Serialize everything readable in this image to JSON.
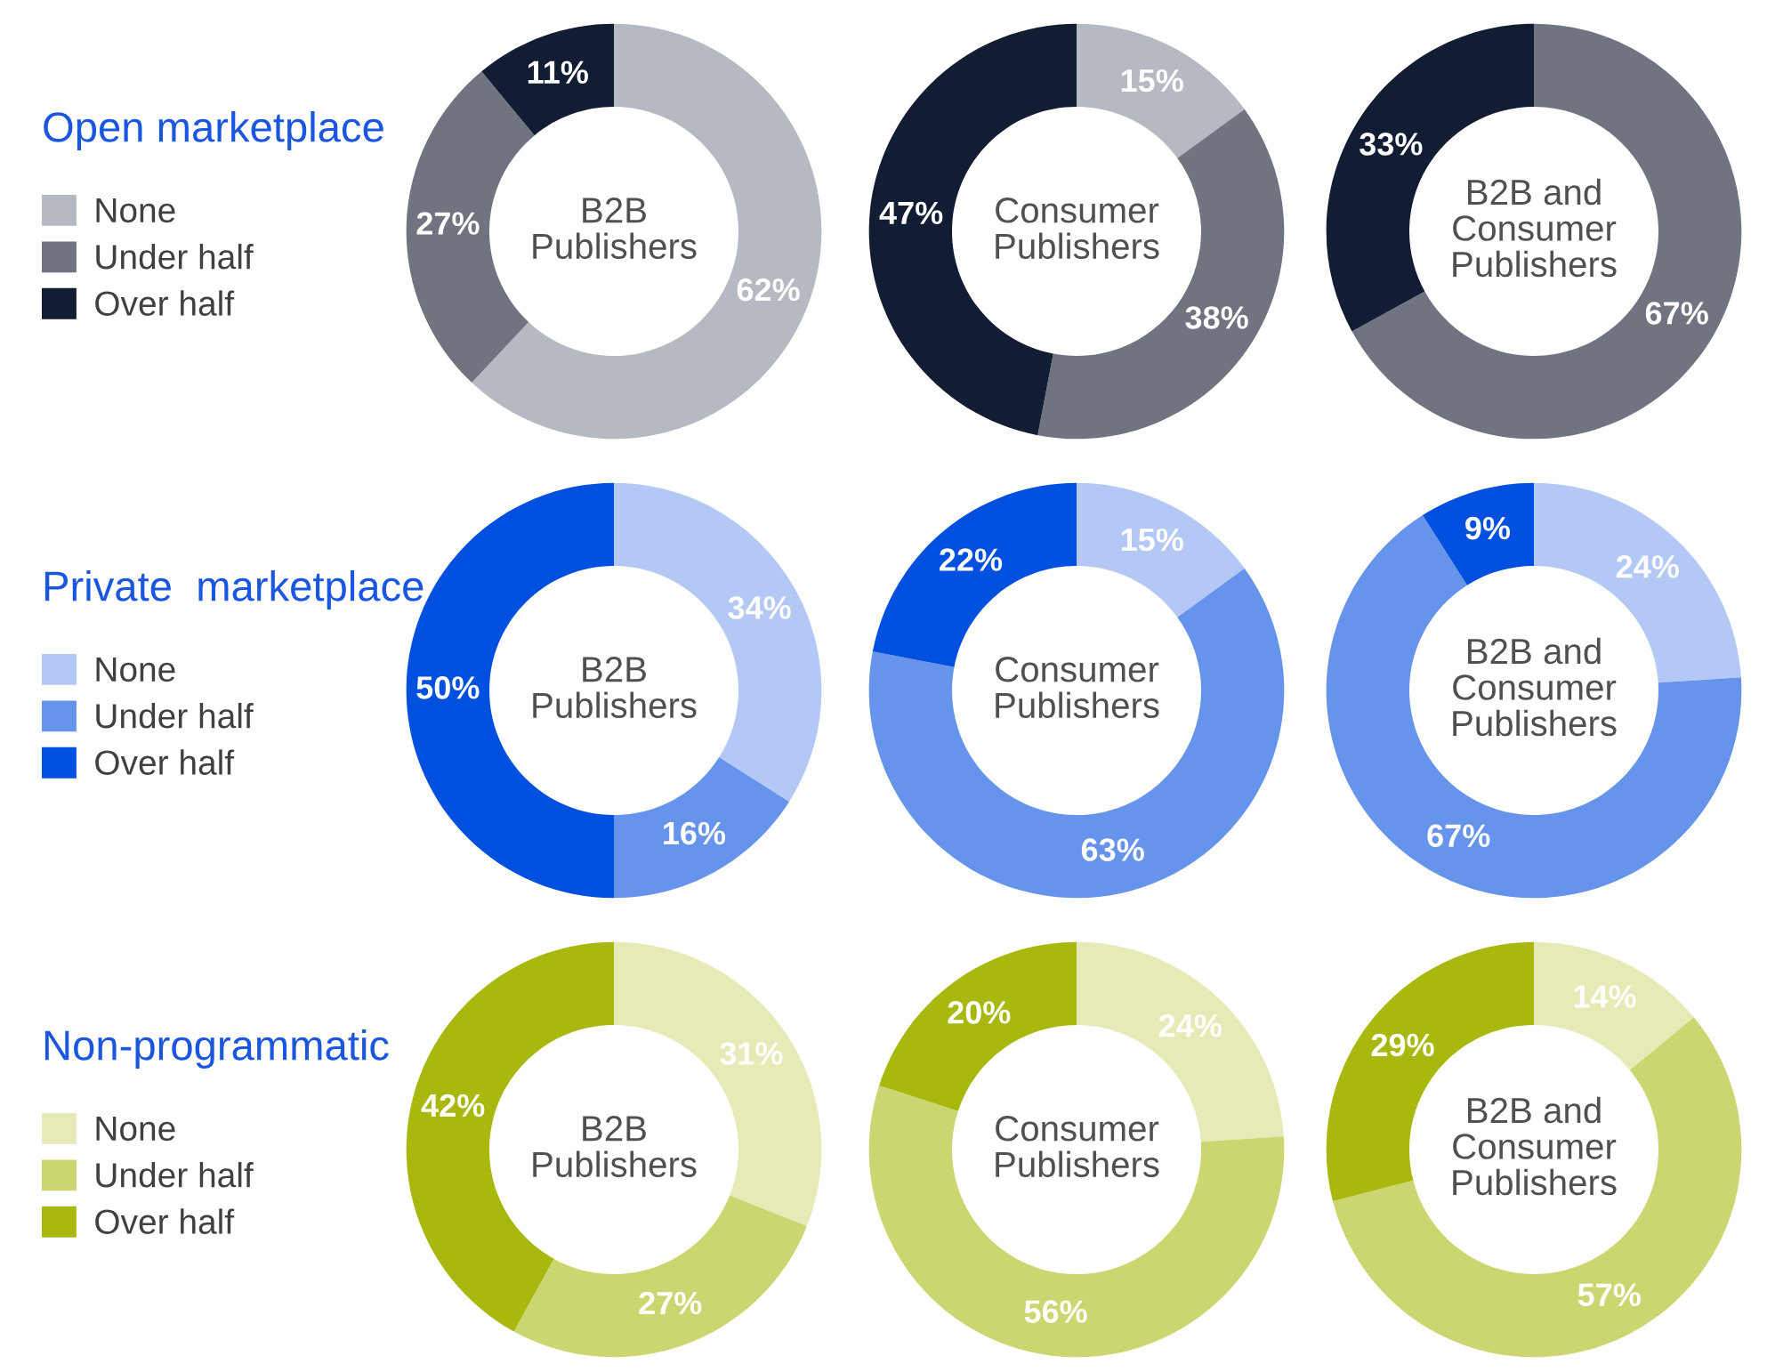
{
  "chart_data": [
    {
      "type": "donut",
      "title": "B2B\nPublishers",
      "legend": "left",
      "legend_title": "Open marketplace",
      "categories": [
        "None",
        "Under half",
        "Over half"
      ],
      "values": [
        62,
        27,
        11
      ],
      "value_labels": [
        "62%",
        "27%",
        "11%"
      ],
      "colors": [
        "#b5b9c1",
        "#6f7480",
        "#121d33"
      ]
    },
    {
      "type": "donut",
      "title": "Consumer\nPublishers",
      "categories": [
        null,
        null,
        null
      ],
      "values": [
        15,
        38,
        47
      ],
      "value_labels": [
        "15%",
        "38%",
        "47%"
      ],
      "colors": [
        "#b5b9c1",
        "#6f7480",
        "#121d33"
      ]
    },
    {
      "type": "donut",
      "title": "B2B and\nConsumer\nPublishers",
      "categories": [
        null,
        null,
        null
      ],
      "values": [
        0,
        67,
        33
      ],
      "value_labels": [
        null,
        "67%",
        "33%"
      ],
      "colors": [
        "#b5b9c1",
        "#6f7480",
        "#121d33"
      ]
    },
    {
      "type": "donut",
      "title": "B2B\nPublishers",
      "legend": "left",
      "legend_title": "Private  marketplace",
      "categories": [
        "None",
        "Under half",
        "Over half"
      ],
      "values": [
        34,
        16,
        50
      ],
      "value_labels": [
        "34%",
        "16%",
        "50%"
      ],
      "colors": [
        "#b3c8f5",
        "#6694ec",
        "#0050e0"
      ]
    },
    {
      "type": "donut",
      "title": "Consumer\nPublishers",
      "categories": [
        null,
        null,
        null
      ],
      "values": [
        15,
        63,
        22
      ],
      "value_labels": [
        "15%",
        "63%",
        "22%"
      ],
      "colors": [
        "#b3c8f5",
        "#6694ec",
        "#0050e0"
      ]
    },
    {
      "type": "donut",
      "title": "B2B and\nConsumer\nPublishers",
      "categories": [
        null,
        null,
        null
      ],
      "values": [
        24,
        67,
        9
      ],
      "value_labels": [
        "24%",
        "67%",
        "9%"
      ],
      "colors": [
        "#b3c8f5",
        "#6694ec",
        "#0050e0"
      ]
    },
    {
      "type": "donut",
      "title": "B2B\nPublishers",
      "legend": "left",
      "legend_title": "Non-programmatic",
      "categories": [
        "None",
        "Under half",
        "Over half"
      ],
      "values": [
        31,
        27,
        42
      ],
      "value_labels": [
        "31%",
        "27%",
        "42%"
      ],
      "colors": [
        "#e5eab6",
        "#cbd670",
        "#a9b80f"
      ]
    },
    {
      "type": "donut",
      "title": "Consumer\nPublishers",
      "categories": [
        null,
        null,
        null
      ],
      "values": [
        24,
        56,
        20
      ],
      "value_labels": [
        "24%",
        "56%",
        "20%"
      ],
      "colors": [
        "#e5eab6",
        "#cbd670",
        "#a9b80f"
      ]
    },
    {
      "type": "donut",
      "title": "B2B and\nConsumer\nPublishers",
      "categories": [
        null,
        null,
        null
      ],
      "values": [
        14,
        57,
        29
      ],
      "value_labels": [
        "14%",
        "57%",
        "29%"
      ],
      "colors": [
        "#e5eab6",
        "#cbd670",
        "#a9b80f"
      ]
    }
  ]
}
